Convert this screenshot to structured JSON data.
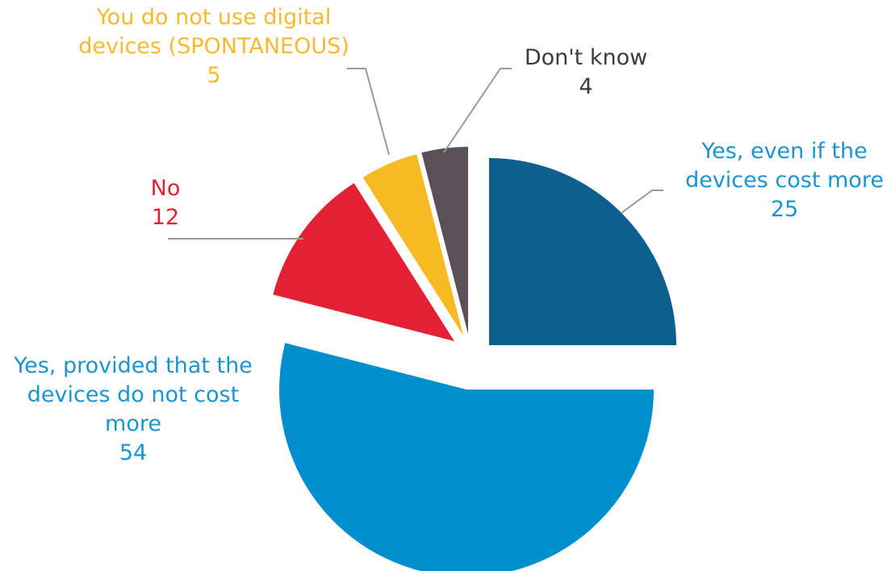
{
  "chart_data": {
    "type": "pie",
    "title": "",
    "slices": [
      {
        "name": "Yes, even if the devices cost more",
        "label_lines": [
          "Yes, even if the",
          "devices cost more"
        ],
        "value": 25,
        "color": "#0b6090",
        "label_color": "#1a95cf"
      },
      {
        "name": "Yes, provided that the devices do not cost more",
        "label_lines": [
          "Yes, provided that the",
          "devices do not cost",
          "more"
        ],
        "value": 54,
        "color": "#008fce",
        "label_color": "#1a95cf"
      },
      {
        "name": "No",
        "label_lines": [
          "No"
        ],
        "value": 12,
        "color": "#e42034",
        "label_color": "#e42034"
      },
      {
        "name": "You do not use digital devices (SPONTANEOUS)",
        "label_lines": [
          "You do not use digital",
          "devices (SPONTANEOUS)"
        ],
        "value": 5,
        "color": "#f8ba23",
        "label_color": "#f7b92f"
      },
      {
        "name": "Don't know",
        "label_lines": [
          "Don't know"
        ],
        "value": 4,
        "color": "#5b5057",
        "label_color": "#3c3c3c"
      }
    ]
  }
}
